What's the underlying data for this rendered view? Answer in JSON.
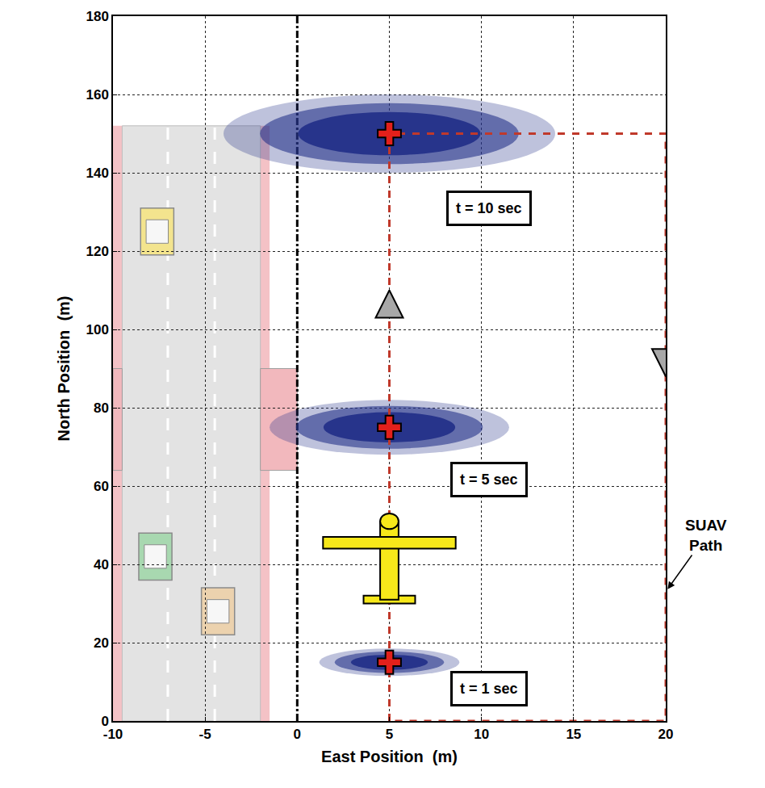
{
  "chart_data": {
    "type": "scatter",
    "x_label": "East Position  (m)",
    "y_label": "North Position  (m)",
    "xlim": [
      -10,
      20
    ],
    "xticks": [
      -10,
      -5,
      0,
      5,
      10,
      15,
      20
    ],
    "ylim": [
      0,
      180
    ],
    "yticks": [
      0,
      20,
      40,
      60,
      80,
      100,
      120,
      140,
      160,
      180
    ],
    "grid": true,
    "color": "#27348b",
    "marker": "cross",
    "clouds": [
      {
        "label": "t = 1 sec",
        "x": 5,
        "y": 15,
        "spread_x": 3.8,
        "spread_y": 3.5
      },
      {
        "label": "t = 5 sec",
        "x": 5,
        "y": 75,
        "spread_x": 6.5,
        "spread_y": 7
      },
      {
        "label": "t = 10 sec",
        "x": 5,
        "y": 150,
        "spread_x": 9,
        "spread_y": 10
      }
    ],
    "path": {
      "label": "SUAV Path",
      "x": [
        5,
        5,
        20,
        20,
        5
      ],
      "y": [
        0,
        150,
        150,
        0,
        0
      ],
      "color": "#c0392b",
      "line_style": "dash",
      "arrow_to": [
        20,
        33
      ]
    },
    "arrows": [
      {
        "x": 5,
        "y": 110,
        "direction": "up"
      },
      {
        "x": 20,
        "y": 88,
        "direction": "down"
      }
    ],
    "aircraft": {
      "x": 5,
      "y": 42
    },
    "road": {
      "x": [
        -9.5,
        -2
      ],
      "y": [
        0,
        152
      ]
    },
    "crossing": [
      64,
      90
    ],
    "boundary": 0,
    "vehicles": [
      {
        "x": -7.6,
        "y": 125,
        "color": "#f3e48e"
      },
      {
        "x": -7.7,
        "y": 42,
        "color": "#a8d8b0"
      },
      {
        "x": -4.3,
        "y": 28,
        "color": "#ecd2ae"
      }
    ]
  }
}
